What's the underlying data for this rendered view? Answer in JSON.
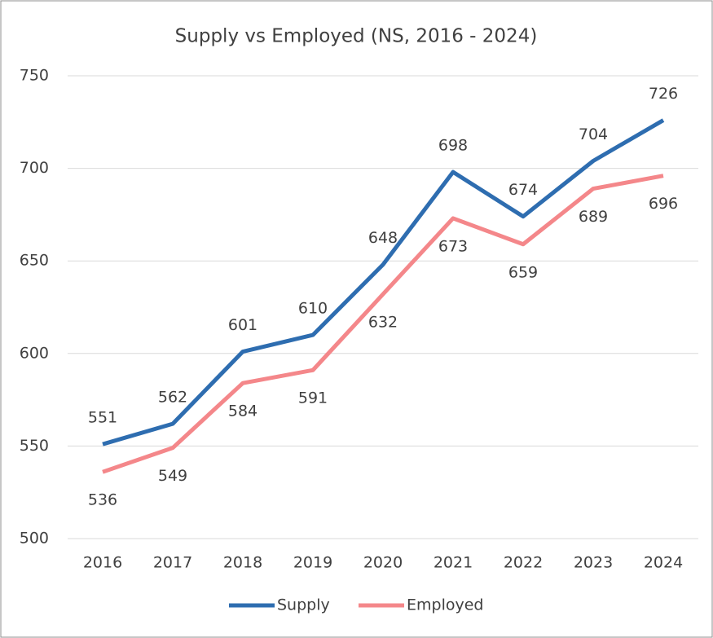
{
  "chart_data": {
    "type": "line",
    "title": "Supply vs Employed (NS, 2016 - 2024)",
    "categories": [
      "2016",
      "2017",
      "2018",
      "2019",
      "2020",
      "2021",
      "2022",
      "2023",
      "2024"
    ],
    "series": [
      {
        "name": "Supply",
        "color": "#2e6db0",
        "values": [
          551,
          562,
          601,
          610,
          648,
          698,
          674,
          704,
          726
        ]
      },
      {
        "name": "Employed",
        "color": "#f4878a",
        "values": [
          536,
          549,
          584,
          591,
          632,
          673,
          659,
          689,
          696
        ]
      }
    ],
    "ylim": [
      500,
      750
    ],
    "yticks": [
      500,
      550,
      600,
      650,
      700,
      750
    ],
    "grid": true,
    "legend": "bottom"
  }
}
